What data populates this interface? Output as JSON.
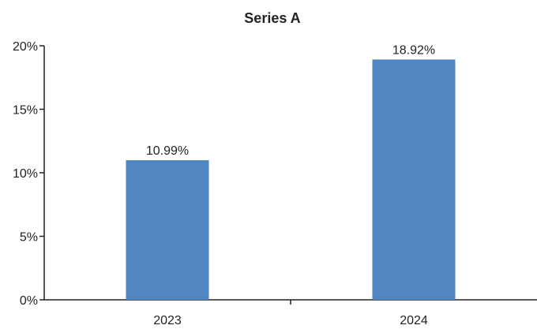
{
  "chart_data": {
    "type": "bar",
    "title": "Series A",
    "xlabel": "",
    "ylabel": "",
    "categories": [
      "2023",
      "2024"
    ],
    "series": [
      {
        "values": [
          10.99,
          18.92
        ]
      }
    ],
    "data_labels": [
      "10.99%",
      "18.92%"
    ],
    "ylim": [
      0,
      20
    ],
    "yticks": [
      0,
      5,
      10,
      15,
      20
    ],
    "ytick_labels": [
      "0%",
      "5%",
      "10%",
      "15%",
      "20%"
    ],
    "grid": false,
    "legend": "none",
    "colors": {
      "bar": "#5087c3",
      "axis": "#222222",
      "text": "#222222"
    }
  }
}
